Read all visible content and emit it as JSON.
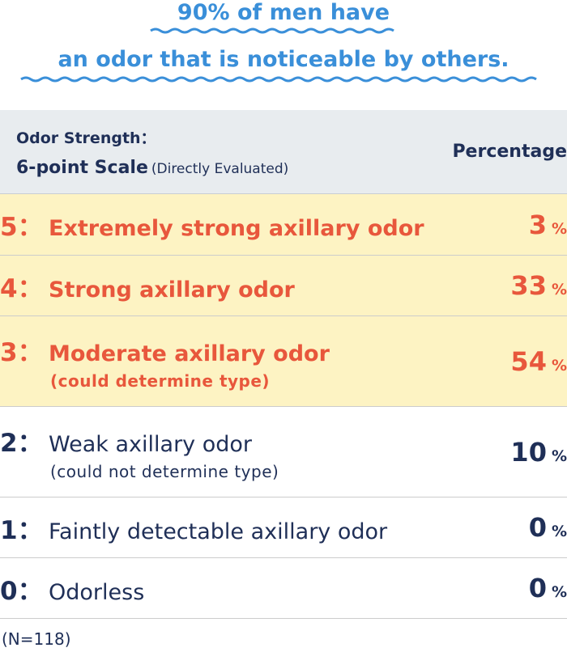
{
  "headline": {
    "line1": "90% of men have",
    "line2": "an odor that is noticeable by others.",
    "accent_color": "#3a8fd9"
  },
  "table": {
    "header": {
      "left_line1": "Odor Strength：",
      "left_line2_bold": "6-point Scale",
      "left_line2_small": "(Directly Evaluated)",
      "right": "Percentage"
    },
    "colors": {
      "highlight_bg": "#fdf3c3",
      "highlight_text": "#e8573c",
      "normal_text": "#1f2f57"
    }
  },
  "chart_data": {
    "type": "table",
    "columns": [
      "Odor Strength： 6-point Scale (Directly Evaluated)",
      "Percentage"
    ],
    "unit": "%",
    "rows": [
      {
        "level": "5：",
        "label": "Extremely strong axillary odor",
        "sub": "",
        "value": "3",
        "highlight": true
      },
      {
        "level": "4：",
        "label": "Strong axillary odor",
        "sub": "",
        "value": "33",
        "highlight": true
      },
      {
        "level": "3：",
        "label": "Moderate axillary odor",
        "sub": "(could determine type)",
        "value": "54",
        "highlight": true
      },
      {
        "level": "2：",
        "label": "Weak axillary odor",
        "sub": "(could not determine type)",
        "value": "10",
        "highlight": false
      },
      {
        "level": "1：",
        "label": "Faintly detectable axillary odor",
        "sub": "",
        "value": "0",
        "highlight": false
      },
      {
        "level": "0：",
        "label": "Odorless",
        "sub": "",
        "value": "0",
        "highlight": false
      }
    ],
    "note": "(N=118)"
  }
}
